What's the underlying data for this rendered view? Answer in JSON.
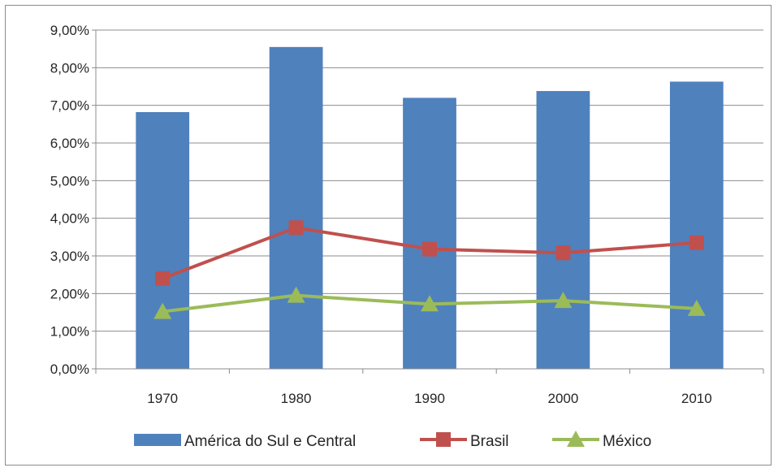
{
  "chart_data": {
    "type": "bar",
    "categories": [
      "1970",
      "1980",
      "1990",
      "2000",
      "2010"
    ],
    "ylim": [
      0,
      9
    ],
    "y_ticks": [
      "0,00%",
      "1,00%",
      "2,00%",
      "3,00%",
      "4,00%",
      "5,00%",
      "6,00%",
      "7,00%",
      "8,00%",
      "9,00%"
    ],
    "unit": "%",
    "grid": true,
    "legend_position": "bottom",
    "series": [
      {
        "name": "América do Sul e Central",
        "kind": "bar",
        "color": "#4f81bd",
        "values": [
          6.82,
          8.55,
          7.2,
          7.38,
          7.63
        ]
      },
      {
        "name": "Brasil",
        "kind": "line",
        "marker": "square",
        "color": "#c0504d",
        "values": [
          2.4,
          3.75,
          3.18,
          3.08,
          3.35
        ]
      },
      {
        "name": "México",
        "kind": "line",
        "marker": "triangle",
        "color": "#9bbb59",
        "values": [
          1.52,
          1.95,
          1.72,
          1.81,
          1.6
        ]
      }
    ]
  }
}
